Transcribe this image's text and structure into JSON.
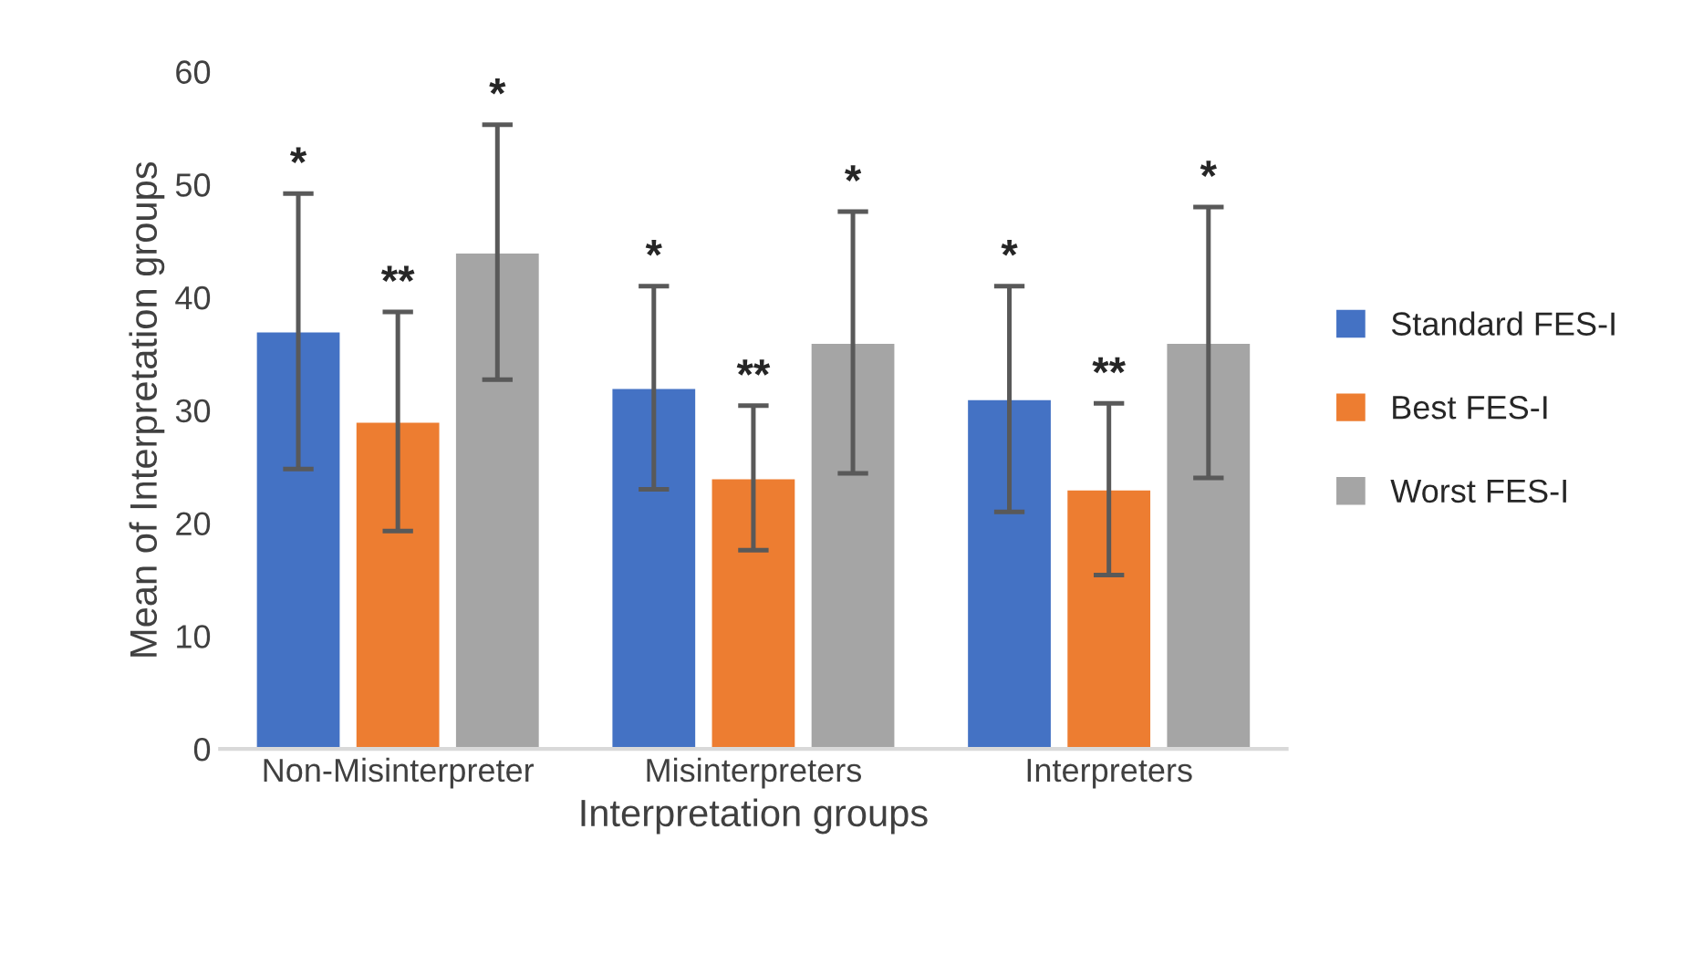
{
  "chart_data": {
    "type": "bar",
    "xlabel": "Interpretation groups",
    "ylabel": "Mean of Interpretation groups",
    "categories": [
      "Non-Misinterpreter",
      "Misinterpreters",
      "Interpreters"
    ],
    "series": [
      {
        "name": "Standard FES-I",
        "color": "#4472c4",
        "values": [
          37,
          32,
          31
        ],
        "errors": [
          12.2,
          9,
          10
        ]
      },
      {
        "name": "Best FES-I",
        "color": "#ed7d31",
        "values": [
          29,
          24,
          23
        ],
        "errors": [
          9.7,
          6.4,
          7.6
        ]
      },
      {
        "name": "Worst FES-I",
        "color": "#a5a5a5",
        "values": [
          44,
          36,
          36
        ],
        "errors": [
          11.3,
          11.6,
          12
        ]
      }
    ],
    "annotations": [
      "*",
      "**",
      "*",
      "*",
      "**",
      "*",
      "*",
      "**",
      "*"
    ],
    "ylim": [
      0,
      60
    ],
    "yticks": [
      0,
      10,
      20,
      30,
      40,
      50,
      60
    ],
    "grid": false,
    "legend": "right"
  }
}
